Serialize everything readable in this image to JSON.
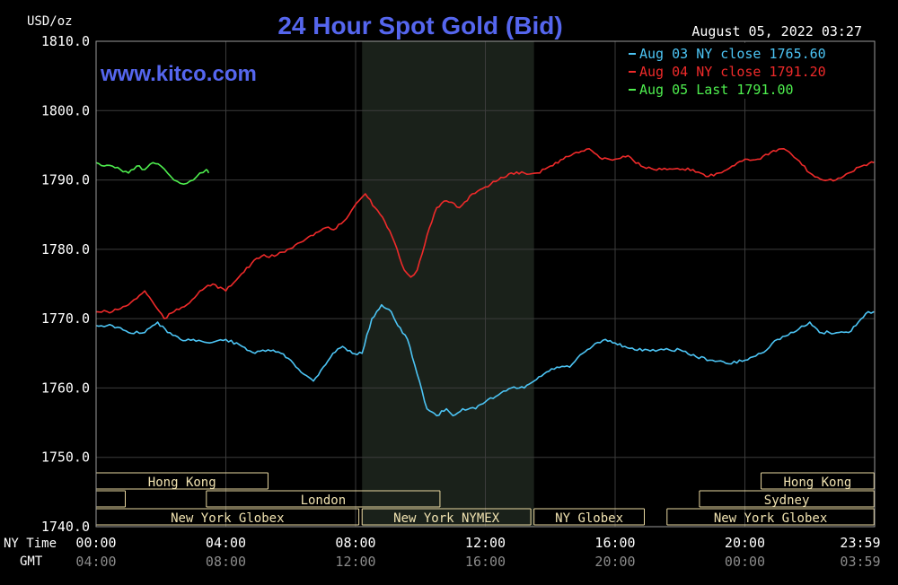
{
  "chart_data": {
    "type": "line",
    "title": "24 Hour Spot Gold (Bid)",
    "subtitle": "www.kitco.com",
    "timestamp": "August 05, 2022 03:27",
    "ylabel": "USD/oz",
    "ylim": [
      1740,
      1810
    ],
    "yticks": [
      "1810.0",
      "1800.0",
      "1790.0",
      "1780.0",
      "1770.0",
      "1760.0",
      "1750.0",
      "1740.0"
    ],
    "xlim": [
      0,
      24
    ],
    "xticks_ny": [
      "00:00",
      "04:00",
      "08:00",
      "12:00",
      "16:00",
      "20:00",
      "23:59"
    ],
    "xticks_gmt": [
      "04:00",
      "08:00",
      "12:00",
      "16:00",
      "20:00",
      "00:00",
      "03:59"
    ],
    "x_row_labels": {
      "ny": "NY Time",
      "gmt": "GMT"
    },
    "grid": true,
    "legend_position": "top-right",
    "shaded_region": [
      8.2,
      13.5
    ],
    "background_color": "#000000",
    "grid_color": "#3c3c3c",
    "title_color": "#5566ee",
    "series": [
      {
        "name": "Aug 03 NY close 1765.60",
        "color": "#4cc4f4",
        "x": [
          0,
          0.5,
          1,
          1.5,
          1.9,
          2.2,
          2.6,
          3,
          3.5,
          4,
          4.5,
          4.9,
          5.3,
          5.7,
          6,
          6.4,
          6.7,
          7,
          7.3,
          7.6,
          7.9,
          8.2,
          8.5,
          8.8,
          9.1,
          9.3,
          9.6,
          9.9,
          10.2,
          10.5,
          10.8,
          11,
          11.3,
          11.7,
          12,
          12.4,
          12.8,
          13.2,
          13.5,
          13.8,
          14.2,
          14.6,
          15,
          15.3,
          15.7,
          16,
          16.3,
          16.6,
          17,
          17.5,
          18,
          18.5,
          19,
          19.5,
          20,
          20.5,
          21,
          21.5,
          22,
          22.3,
          22.6,
          22.9,
          23.2,
          23.5,
          23.8,
          23.98
        ],
        "values": [
          1769,
          1769,
          1768,
          1768,
          1769.5,
          1768,
          1767,
          1767,
          1766.5,
          1767,
          1766,
          1765,
          1765.5,
          1765,
          1764,
          1762,
          1761,
          1763,
          1765,
          1766,
          1765,
          1765,
          1770,
          1772,
          1771,
          1769,
          1767,
          1762,
          1757,
          1756,
          1757,
          1756,
          1757,
          1757,
          1758,
          1759,
          1760,
          1760,
          1761,
          1762,
          1763,
          1763,
          1765,
          1766,
          1767,
          1766.5,
          1766,
          1765.5,
          1765.5,
          1765.5,
          1765.5,
          1764.5,
          1764,
          1763.5,
          1764,
          1765,
          1767,
          1768,
          1769.5,
          1768,
          1768,
          1768,
          1768,
          1769.5,
          1771,
          1771
        ]
      },
      {
        "name": "Aug 04 NY close 1791.20",
        "color": "#ef2a2a",
        "x": [
          0,
          0.5,
          1,
          1.5,
          1.8,
          2.1,
          2.4,
          2.8,
          3.2,
          3.6,
          4,
          4.4,
          4.8,
          5.1,
          5.5,
          5.9,
          6.3,
          6.7,
          7,
          7.4,
          7.8,
          8.1,
          8.3,
          8.6,
          8.9,
          9.2,
          9.5,
          9.7,
          9.9,
          10.2,
          10.5,
          10.8,
          11.2,
          11.6,
          12,
          12.4,
          12.8,
          13.2,
          13.6,
          14,
          14.4,
          14.8,
          15.2,
          15.6,
          16,
          16.4,
          16.8,
          17.2,
          17.6,
          18,
          18.4,
          18.8,
          19.2,
          19.6,
          20,
          20.4,
          20.8,
          21.2,
          21.6,
          22,
          22.4,
          22.8,
          23.2,
          23.6,
          23.98
        ],
        "values": [
          1771,
          1771,
          1772,
          1774,
          1772,
          1770,
          1771,
          1772,
          1774,
          1775,
          1774,
          1776,
          1778,
          1779,
          1779,
          1780,
          1781,
          1782,
          1783,
          1783,
          1785,
          1787,
          1788,
          1786,
          1784,
          1781,
          1777,
          1776,
          1777,
          1782,
          1786,
          1787,
          1786,
          1788,
          1789,
          1790,
          1791,
          1791,
          1791,
          1792,
          1793,
          1794,
          1794.5,
          1793,
          1793,
          1793.5,
          1792,
          1791.5,
          1791.5,
          1791.5,
          1791.5,
          1790.5,
          1791,
          1792,
          1793,
          1793,
          1794,
          1794.5,
          1793,
          1791,
          1790,
          1790,
          1791,
          1792,
          1792.5
        ]
      },
      {
        "name": "Aug 05 Last 1791.00",
        "color": "#4eee4e",
        "x": [
          0,
          0.25,
          0.5,
          0.75,
          1,
          1.25,
          1.5,
          1.75,
          2,
          2.2,
          2.4,
          2.6,
          2.8,
          3,
          3.2,
          3.4,
          3.47
        ],
        "values": [
          1792.5,
          1792,
          1792,
          1791.5,
          1791,
          1792,
          1791.5,
          1792.5,
          1792,
          1791,
          1790,
          1789.5,
          1789.5,
          1790,
          1791,
          1791.5,
          1791
        ]
      }
    ],
    "sessions": [
      {
        "label": "Hong Kong",
        "start": 0,
        "end": 5.3,
        "row": 0
      },
      {
        "label": "",
        "start": 0,
        "end": 0.9,
        "row": 1
      },
      {
        "label": "London",
        "start": 3.4,
        "end": 10.6,
        "row": 1
      },
      {
        "label": "New York Globex",
        "start": 0,
        "end": 8.1,
        "row": 2
      },
      {
        "label": "New York NYMEX",
        "start": 8.2,
        "end": 13.4,
        "row": 2
      },
      {
        "label": "NY Globex",
        "start": 13.5,
        "end": 16.9,
        "row": 2
      },
      {
        "label": "Hong Kong",
        "start": 20.5,
        "end": 23.98,
        "row": 0
      },
      {
        "label": "Sydney",
        "start": 18.6,
        "end": 23.98,
        "row": 1
      },
      {
        "label": "New York Globex",
        "start": 17.6,
        "end": 23.98,
        "row": 2
      }
    ]
  }
}
